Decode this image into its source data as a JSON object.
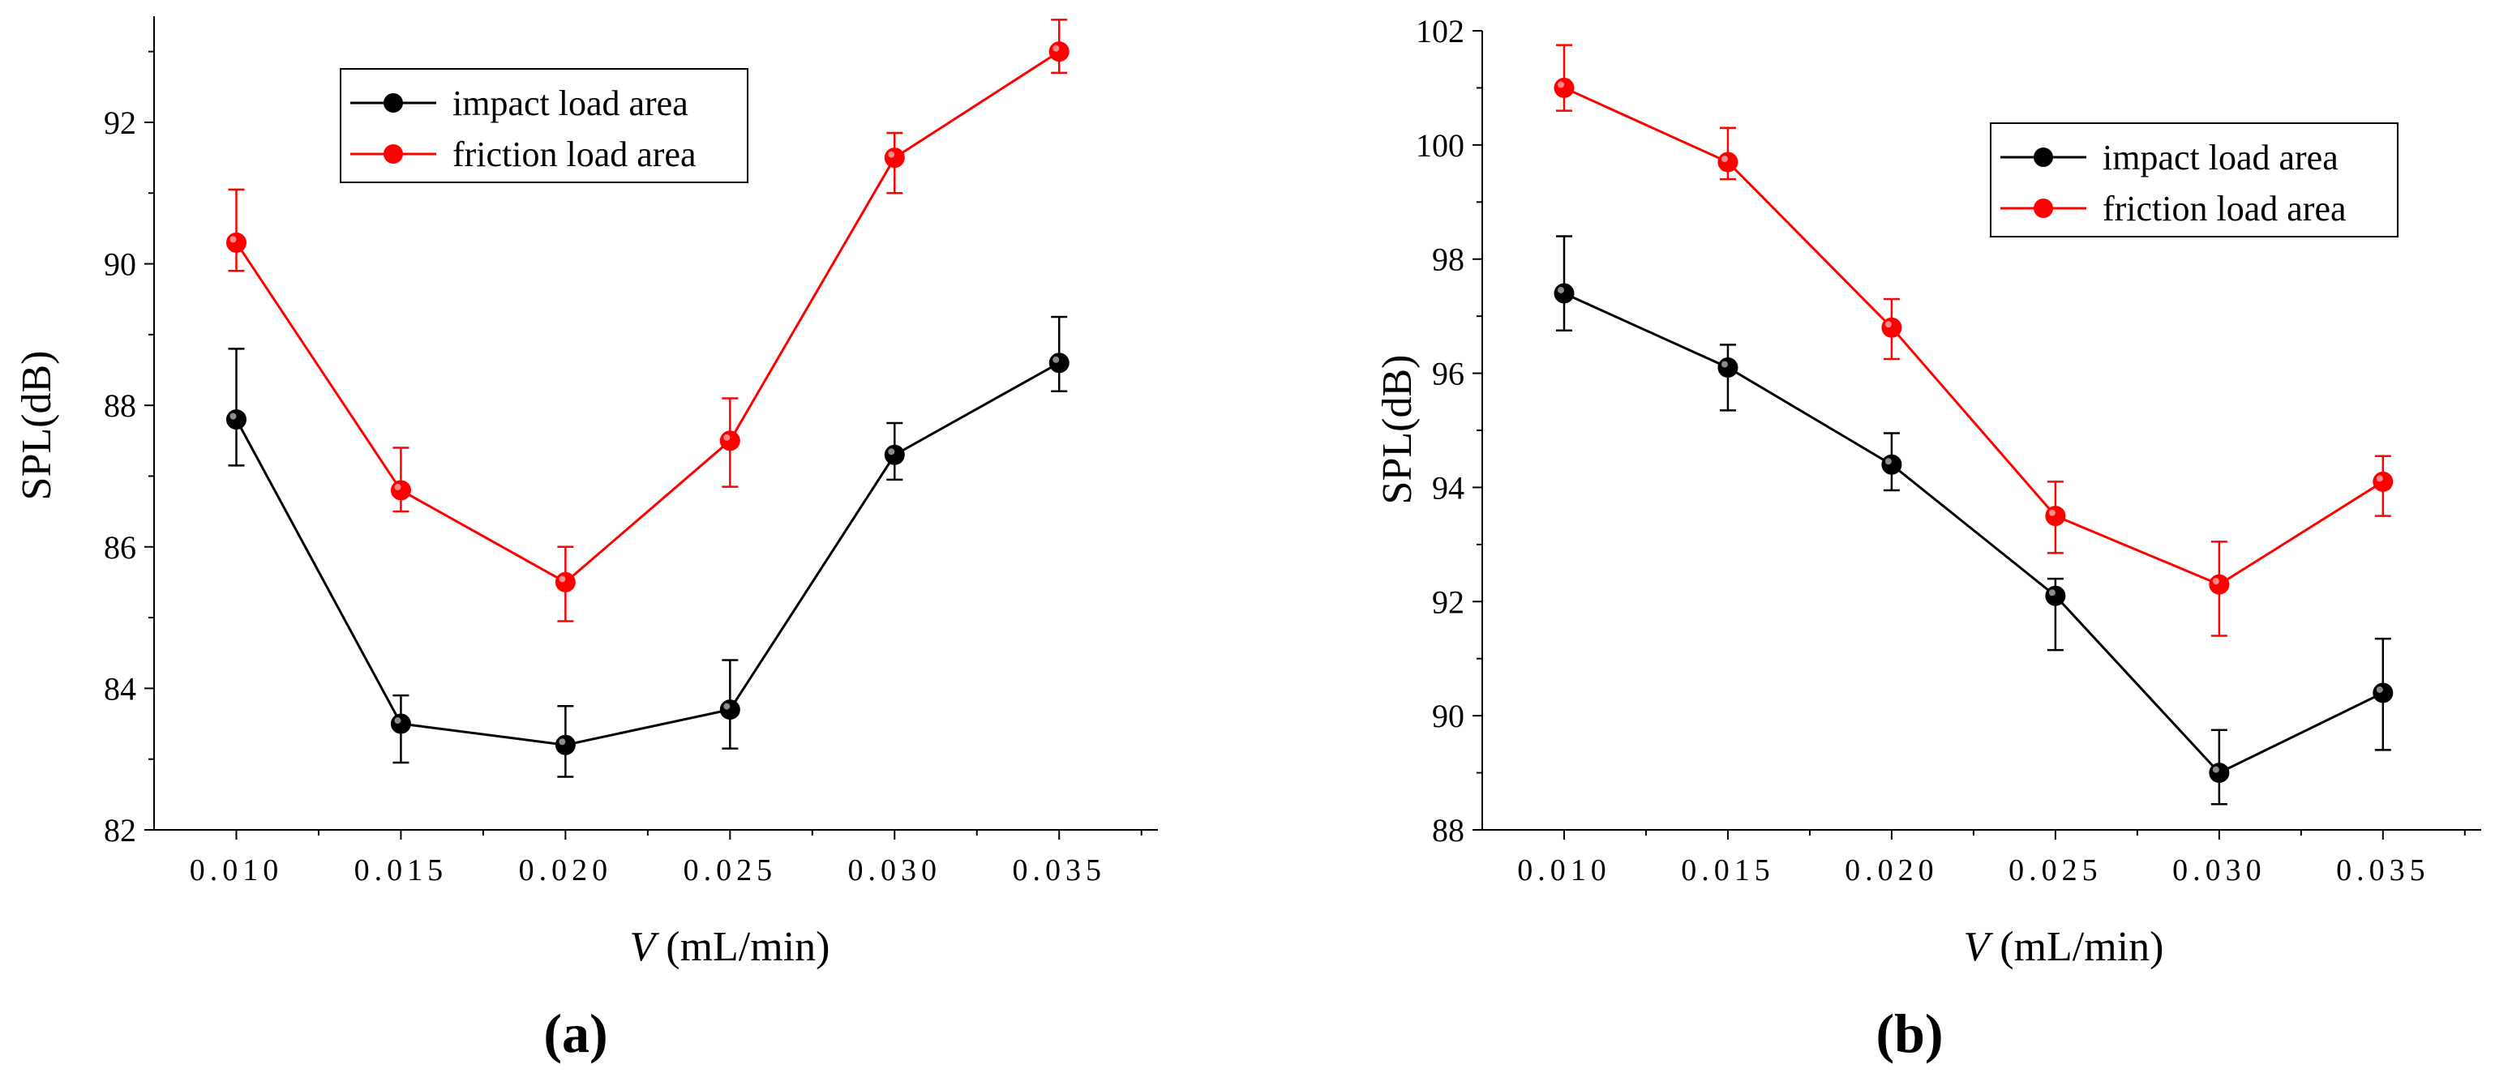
{
  "chart_data": [
    {
      "type": "line",
      "panel_label": "(a)",
      "xlabel_var": "V",
      "xlabel_unit": " (mL/min)",
      "ylabel": "SPL(dB)",
      "categories": [
        "0.010",
        "0.015",
        "0.020",
        "0.025",
        "0.030",
        "0.035"
      ],
      "x": [
        0.01,
        0.015,
        0.02,
        0.025,
        0.03,
        0.035
      ],
      "xlim": [
        0.0075,
        0.038
      ],
      "ylim": [
        82,
        93.5
      ],
      "yticks": [
        82,
        84,
        86,
        88,
        90,
        92
      ],
      "ytick_labels": [
        "82",
        "84",
        "86",
        "88",
        "90",
        "92"
      ],
      "legend_position": "top-center",
      "series": [
        {
          "name": "impact load area",
          "color": "#000000",
          "values": [
            87.8,
            83.5,
            83.2,
            83.7,
            87.3,
            88.6
          ],
          "err_upper": [
            88.8,
            83.9,
            83.75,
            84.4,
            87.75,
            89.25
          ],
          "err_lower": [
            87.15,
            82.95,
            82.75,
            83.15,
            86.95,
            88.2
          ]
        },
        {
          "name": "friction load area",
          "color": "#ff0000",
          "values": [
            90.3,
            86.8,
            85.5,
            87.5,
            91.5,
            93.0
          ],
          "err_upper": [
            91.05,
            87.4,
            86.0,
            88.1,
            91.85,
            93.45
          ],
          "err_lower": [
            89.9,
            86.5,
            84.95,
            86.85,
            91.0,
            92.7
          ]
        }
      ]
    },
    {
      "type": "line",
      "panel_label": "(b)",
      "xlabel_var": "V",
      "xlabel_unit": " (mL/min)",
      "ylabel": "SPL(dB)",
      "categories": [
        "0.010",
        "0.015",
        "0.020",
        "0.025",
        "0.030",
        "0.035"
      ],
      "x": [
        0.01,
        0.015,
        0.02,
        0.025,
        0.03,
        0.035
      ],
      "xlim": [
        0.0075,
        0.038
      ],
      "ylim": [
        88,
        102
      ],
      "yticks": [
        88,
        90,
        92,
        94,
        96,
        98,
        100,
        102
      ],
      "ytick_labels": [
        "88",
        "90",
        "92",
        "94",
        "96",
        "98",
        "100",
        "102"
      ],
      "legend_position": "top-right",
      "series": [
        {
          "name": "impact load area",
          "color": "#000000",
          "values": [
            97.4,
            96.1,
            94.4,
            92.1,
            89.0,
            90.4
          ],
          "err_upper": [
            98.4,
            96.5,
            94.95,
            92.4,
            89.75,
            91.35
          ],
          "err_lower": [
            96.75,
            95.35,
            93.95,
            91.15,
            88.45,
            89.4
          ]
        },
        {
          "name": "friction load area",
          "color": "#ff0000",
          "values": [
            101.0,
            99.7,
            96.8,
            93.5,
            92.3,
            94.1
          ],
          "err_upper": [
            101.75,
            100.3,
            97.3,
            94.1,
            93.05,
            94.55
          ],
          "err_lower": [
            100.6,
            99.4,
            96.25,
            92.85,
            91.4,
            93.5
          ]
        }
      ]
    }
  ]
}
